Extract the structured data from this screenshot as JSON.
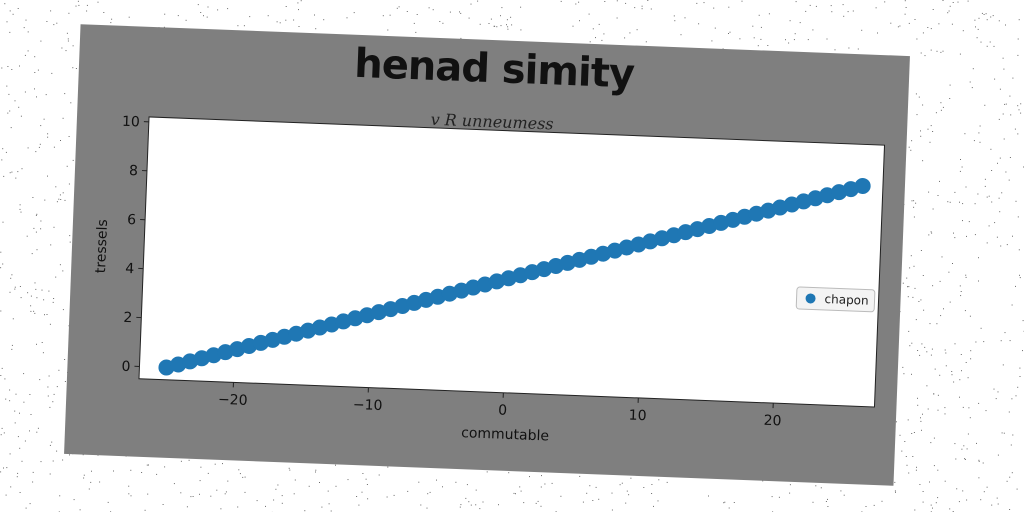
{
  "chart_data": {
    "type": "scatter",
    "title": "henad simity",
    "subtitle": "v R unneumess",
    "xlabel": "commutable",
    "ylabel": "tressels",
    "xlim": [
      -27,
      27.5
    ],
    "ylim": [
      -0.5,
      10.2
    ],
    "xticks": [
      -20,
      -10,
      0,
      10,
      20
    ],
    "yticks": [
      0,
      2,
      4,
      6,
      8,
      10
    ],
    "legend": {
      "position": "center-right"
    },
    "series": [
      {
        "name": "chapon",
        "color": "#1f77b4",
        "x_start": -25,
        "x_end": 26,
        "count": 60,
        "y_start": 0,
        "y_end": 8.5
      }
    ],
    "grid": false
  }
}
